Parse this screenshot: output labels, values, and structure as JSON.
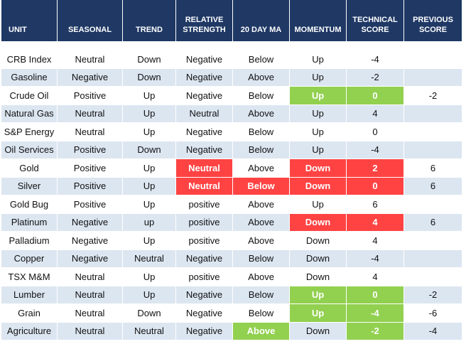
{
  "table": {
    "columns": [
      "UNIT",
      "SEASONAL",
      "TREND",
      "RELATIVE STRENGTH",
      "20 DAY MA",
      "MOMENTUM",
      "TECHNICAL SCORE",
      "PREVIOUS SCORE"
    ],
    "rows": [
      [
        "CRB Index",
        "Neutral",
        "Down",
        "Negative",
        "Below",
        "Up",
        -4,
        null
      ],
      [
        "Gasoline",
        "Negative",
        "Down",
        "Negative",
        "Above",
        "Up",
        -2,
        null
      ],
      [
        "Crude Oil",
        "Positive",
        "Up",
        "Negative",
        "Below",
        {
          "text": "Up",
          "fill": "#92d050"
        },
        {
          "text": 0,
          "fill": "#92d050"
        },
        -2
      ],
      [
        "Natural Gas",
        "Neutral",
        "Up",
        "Neutral",
        "Above",
        "Up",
        4,
        null
      ],
      [
        "S&P Energy",
        "Neutral",
        "Up",
        "Negative",
        "Below",
        "Up",
        0,
        null
      ],
      [
        "Oil Services",
        "Positive",
        "Down",
        "Negative",
        "Below",
        "Up",
        -4,
        null
      ],
      [
        "Gold",
        "Positive",
        "Up",
        {
          "text": "Neutral",
          "fill": "#ff4343"
        },
        "Above",
        {
          "text": "Down",
          "fill": "#ff4343"
        },
        {
          "text": 2,
          "fill": "#ff4343"
        },
        6
      ],
      [
        "Silver",
        "Positive",
        "Up",
        {
          "text": "Neutral",
          "fill": "#ff4343"
        },
        {
          "text": "Below",
          "fill": "#ff4343"
        },
        {
          "text": "Down",
          "fill": "#ff4343"
        },
        {
          "text": 0,
          "fill": "#ff4343"
        },
        6
      ],
      [
        "Gold Bug",
        "Positive",
        "Up",
        "positive",
        "Above",
        "Up",
        6,
        null
      ],
      [
        "Platinum",
        "Negative",
        "up",
        "positive",
        "Above",
        {
          "text": "Down",
          "fill": "#ff4343"
        },
        {
          "text": 4,
          "fill": "#ff4343"
        },
        6
      ],
      [
        "Palladium",
        "Negative",
        "Up",
        "positive",
        "Above",
        "Down",
        4,
        null
      ],
      [
        "Copper",
        "Negative",
        "Neutral",
        "Negative",
        "Below",
        "Down",
        -4,
        null
      ],
      [
        "TSX M&M",
        "Neutral",
        "Up",
        "positive",
        "Above",
        "Down",
        4,
        null
      ],
      [
        "Lumber",
        "Neutral",
        "Up",
        "Negative",
        "Below",
        {
          "text": "Up",
          "fill": "#92d050"
        },
        {
          "text": 0,
          "fill": "#92d050"
        },
        -2
      ],
      [
        "Grain",
        "Neutral",
        "Down",
        "Negative",
        "Below",
        {
          "text": "Up",
          "fill": "#92d050"
        },
        {
          "text": -4,
          "fill": "#92d050"
        },
        -6
      ],
      [
        "Agriculture",
        "Neutral",
        "Neutral",
        "Negative",
        {
          "text": "Above",
          "fill": "#92d050"
        },
        "Down",
        {
          "text": -2,
          "fill": "#92d050"
        },
        -4
      ]
    ]
  }
}
